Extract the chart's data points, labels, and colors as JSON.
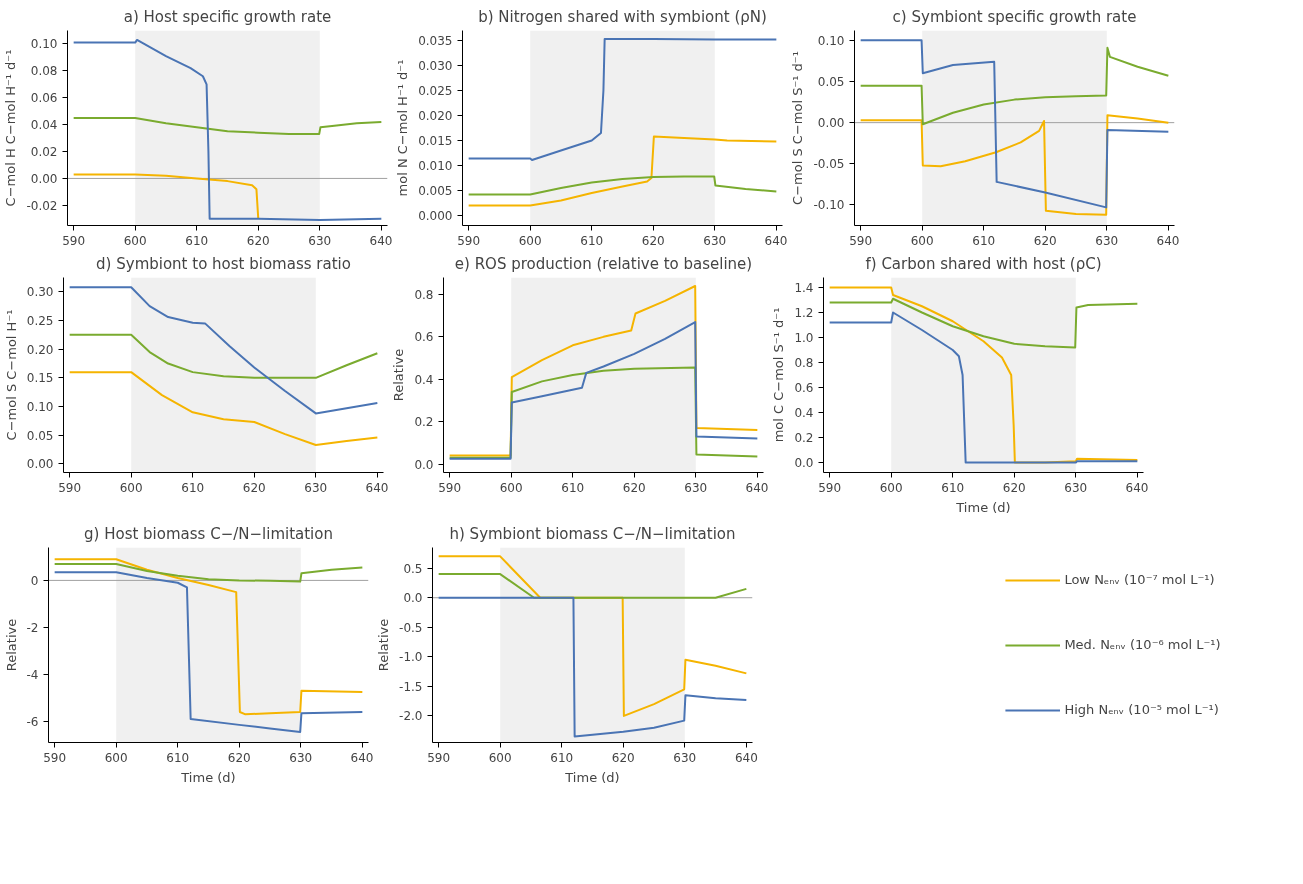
{
  "chart_data": [
    {
      "type": "line",
      "title": "a) Host specific growth rate",
      "ylabel": "C−mol H C−mol H⁻¹ d⁻¹",
      "xlim": [
        589,
        641
      ],
      "xticks": [
        590,
        600,
        610,
        620,
        630,
        640
      ],
      "ylim": [
        -0.035,
        0.11
      ],
      "yticks": [
        -0.02,
        {
          "value": 0,
          "label": "0.00"
        },
        0.02,
        0.04,
        0.06,
        0.08,
        {
          "value": 0.1,
          "label": "0.10"
        }
      ],
      "grid": false,
      "bands": [
        {
          "axis": "x",
          "from": 600,
          "to": 630,
          "color": "#f0f0f0"
        }
      ],
      "ref_lines": [
        {
          "axis": "y",
          "value": 0,
          "color": "#a0a0a0"
        }
      ],
      "series": [
        {
          "color": "#f5b400",
          "x": [
            590,
            600,
            605,
            610,
            615,
            619,
            619.7,
            620
          ],
          "values": [
            0.003,
            0.003,
            0.002,
            0.0,
            -0.002,
            -0.005,
            -0.008,
            -0.03
          ]
        },
        {
          "color": "#7aab2f",
          "x": [
            590,
            600,
            605,
            610,
            615,
            620,
            625,
            629.9,
            630.1,
            632,
            636,
            640
          ],
          "values": [
            0.045,
            0.045,
            0.041,
            0.038,
            0.035,
            0.034,
            0.033,
            0.033,
            0.038,
            0.039,
            0.041,
            0.042
          ]
        },
        {
          "color": "#4a74b4",
          "x": [
            590,
            600,
            600.3,
            605,
            609,
            611,
            611.6,
            611.9,
            612.1,
            620,
            630,
            640
          ],
          "values": [
            0.101,
            0.101,
            0.103,
            0.091,
            0.082,
            0.076,
            0.07,
            0.02,
            -0.03,
            -0.03,
            -0.031,
            -0.03
          ]
        }
      ]
    },
    {
      "type": "line",
      "title": "b) Nitrogen shared with symbiont (ρN)",
      "ylabel": "mol N C−mol H⁻¹ d⁻¹",
      "xlim": [
        589,
        641
      ],
      "xticks": [
        590,
        600,
        610,
        620,
        630,
        640
      ],
      "ylim": [
        -0.002,
        0.037
      ],
      "yticks": [
        {
          "value": 0,
          "label": "0.000"
        },
        0.005,
        {
          "value": 0.01,
          "label": "0.010"
        },
        0.015,
        {
          "value": 0.02,
          "label": "0.020"
        },
        0.025,
        {
          "value": 0.03,
          "label": "0.030"
        },
        0.035
      ],
      "grid": false,
      "bands": [
        {
          "axis": "x",
          "from": 600,
          "to": 630,
          "color": "#f0f0f0"
        }
      ],
      "series": [
        {
          "color": "#f5b400",
          "x": [
            590,
            600,
            605,
            610,
            615,
            619,
            619.7,
            620.1,
            625,
            630,
            632,
            640
          ],
          "values": [
            0.002,
            0.002,
            0.003,
            0.0045,
            0.0058,
            0.0068,
            0.0075,
            0.0158,
            0.0155,
            0.0152,
            0.015,
            0.0148
          ]
        },
        {
          "color": "#7aab2f",
          "x": [
            590,
            600,
            605,
            610,
            615,
            620,
            625,
            629.9,
            630.1,
            635,
            640
          ],
          "values": [
            0.0042,
            0.0042,
            0.0055,
            0.0066,
            0.0073,
            0.0077,
            0.0078,
            0.0078,
            0.006,
            0.0053,
            0.0048
          ]
        },
        {
          "color": "#4a74b4",
          "x": [
            590,
            600,
            600.3,
            605,
            610,
            611.5,
            611.9,
            612.1,
            620,
            630,
            640
          ],
          "values": [
            0.0114,
            0.0114,
            0.0111,
            0.013,
            0.015,
            0.0165,
            0.025,
            0.0353,
            0.0353,
            0.0352,
            0.0352
          ]
        }
      ]
    },
    {
      "type": "line",
      "title": "c) Symbiont specific growth rate",
      "ylabel": "C−mol S C−mol S⁻¹ d⁻¹",
      "xlim": [
        589,
        641
      ],
      "xticks": [
        590,
        600,
        610,
        620,
        630,
        640
      ],
      "ylim": [
        -0.125,
        0.112
      ],
      "yticks": [
        {
          "value": -0.1,
          "label": "-0.10"
        },
        -0.05,
        {
          "value": 0,
          "label": "0.00"
        },
        0.05,
        {
          "value": 0.1,
          "label": "0.10"
        }
      ],
      "grid": false,
      "bands": [
        {
          "axis": "x",
          "from": 600,
          "to": 630,
          "color": "#f0f0f0"
        }
      ],
      "ref_lines": [
        {
          "axis": "y",
          "value": 0,
          "color": "#a0a0a0"
        }
      ],
      "series": [
        {
          "color": "#f5b400",
          "x": [
            590,
            599.9,
            600.1,
            603,
            607,
            612,
            616,
            619,
            619.8,
            620.1,
            625,
            629.9,
            630.1,
            635,
            640
          ],
          "values": [
            0.003,
            0.003,
            -0.052,
            -0.053,
            -0.047,
            -0.036,
            -0.024,
            -0.01,
            0.002,
            -0.107,
            -0.111,
            -0.112,
            0.009,
            0.005,
            0.0
          ]
        },
        {
          "color": "#7aab2f",
          "x": [
            590,
            599.9,
            600.1,
            605,
            610,
            615,
            620,
            625,
            629.9,
            630.1,
            630.5,
            635,
            640
          ],
          "values": [
            0.045,
            0.045,
            -0.002,
            0.012,
            0.022,
            0.028,
            0.031,
            0.032,
            0.033,
            0.091,
            0.08,
            0.068,
            0.057
          ]
        },
        {
          "color": "#4a74b4",
          "x": [
            590,
            599.9,
            600.1,
            605,
            611.7,
            612.1,
            620,
            629.9,
            630.1,
            640
          ],
          "values": [
            0.1,
            0.1,
            0.06,
            0.07,
            0.074,
            -0.072,
            -0.085,
            -0.103,
            -0.009,
            -0.011
          ]
        }
      ]
    },
    {
      "type": "line",
      "title": "d) Symbiont to host biomass ratio",
      "ylabel": "C−mol S C−mol H⁻¹",
      "xlim": [
        589,
        641
      ],
      "xticks": [
        590,
        600,
        610,
        620,
        630,
        640
      ],
      "ylim": [
        -0.015,
        0.325
      ],
      "yticks": [
        {
          "value": 0,
          "label": "0.00"
        },
        0.05,
        {
          "value": 0.1,
          "label": "0.10"
        },
        0.15,
        {
          "value": 0.2,
          "label": "0.20"
        },
        0.25,
        {
          "value": 0.3,
          "label": "0.30"
        }
      ],
      "grid": false,
      "bands": [
        {
          "axis": "x",
          "from": 600,
          "to": 630,
          "color": "#f0f0f0"
        }
      ],
      "series": [
        {
          "color": "#f5b400",
          "x": [
            590,
            600,
            605,
            610,
            615,
            620,
            625,
            630,
            635,
            640
          ],
          "values": [
            0.16,
            0.16,
            0.12,
            0.09,
            0.078,
            0.073,
            0.052,
            0.033,
            0.04,
            0.046
          ]
        },
        {
          "color": "#7aab2f",
          "x": [
            590,
            600,
            603,
            606,
            610,
            615,
            620,
            625,
            630,
            635,
            640
          ],
          "values": [
            0.225,
            0.225,
            0.195,
            0.175,
            0.16,
            0.153,
            0.15,
            0.15,
            0.15,
            0.172,
            0.193
          ]
        },
        {
          "color": "#4a74b4",
          "x": [
            590,
            600,
            603,
            606,
            610,
            612,
            616,
            620,
            625,
            630,
            635,
            640
          ],
          "values": [
            0.308,
            0.308,
            0.275,
            0.256,
            0.246,
            0.245,
            0.205,
            0.168,
            0.127,
            0.088,
            0.097,
            0.106
          ]
        }
      ]
    },
    {
      "type": "line",
      "title": "e) ROS production (relative to baseline)",
      "ylabel": "Relative",
      "xlim": [
        589,
        641
      ],
      "xticks": [
        590,
        600,
        610,
        620,
        630,
        640
      ],
      "ylim": [
        -0.04,
        0.88
      ],
      "yticks": [
        {
          "value": 0,
          "label": "0.0"
        },
        0.2,
        0.4,
        0.6,
        0.8
      ],
      "grid": false,
      "bands": [
        {
          "axis": "x",
          "from": 600,
          "to": 630,
          "color": "#f0f0f0"
        }
      ],
      "series": [
        {
          "color": "#f5b400",
          "x": [
            590,
            599.9,
            600.1,
            605,
            610,
            615,
            619.5,
            620.2,
            625,
            629.9,
            630.1,
            640
          ],
          "values": [
            0.04,
            0.04,
            0.41,
            0.49,
            0.56,
            0.6,
            0.63,
            0.71,
            0.77,
            0.84,
            0.17,
            0.16
          ]
        },
        {
          "color": "#7aab2f",
          "x": [
            590,
            599.9,
            600.1,
            605,
            610,
            615,
            620,
            629.9,
            630.1,
            640
          ],
          "values": [
            0.03,
            0.03,
            0.34,
            0.39,
            0.42,
            0.44,
            0.45,
            0.455,
            0.045,
            0.035
          ]
        },
        {
          "color": "#4a74b4",
          "x": [
            590,
            599.9,
            600.1,
            605,
            611.5,
            612.2,
            615,
            620,
            625,
            629.9,
            630.1,
            640
          ],
          "values": [
            0.025,
            0.025,
            0.29,
            0.32,
            0.36,
            0.43,
            0.46,
            0.52,
            0.59,
            0.67,
            0.13,
            0.12
          ]
        }
      ]
    },
    {
      "type": "line",
      "title": "f) Carbon shared with host (ρC)",
      "xlabel": "Time (d)",
      "ylabel": "mol C C−mol S⁻¹ d⁻¹",
      "xlim": [
        589,
        641
      ],
      "xticks": [
        590,
        600,
        610,
        620,
        630,
        640
      ],
      "ylim": [
        -0.08,
        1.48
      ],
      "yticks": [
        {
          "value": 0,
          "label": "0.0"
        },
        0.2,
        0.4,
        0.6,
        0.8,
        {
          "value": 1,
          "label": "1.0"
        },
        1.2,
        1.4
      ],
      "grid": false,
      "bands": [
        {
          "axis": "x",
          "from": 600,
          "to": 630,
          "color": "#f0f0f0"
        }
      ],
      "series": [
        {
          "color": "#f5b400",
          "x": [
            590,
            600,
            600.3,
            605,
            610,
            615,
            618,
            619.5,
            619.9,
            620.1,
            625,
            630,
            630.2,
            640
          ],
          "values": [
            1.4,
            1.4,
            1.34,
            1.25,
            1.13,
            0.97,
            0.84,
            0.7,
            0.3,
            0.0,
            0.0,
            0.01,
            0.03,
            0.02
          ]
        },
        {
          "color": "#7aab2f",
          "x": [
            590,
            600,
            600.3,
            605,
            610,
            615,
            620,
            625,
            629.9,
            630.1,
            632,
            640
          ],
          "values": [
            1.28,
            1.28,
            1.31,
            1.2,
            1.09,
            1.01,
            0.95,
            0.93,
            0.92,
            1.24,
            1.26,
            1.27
          ]
        },
        {
          "color": "#4a74b4",
          "x": [
            590,
            600,
            600.3,
            605,
            610,
            611,
            611.6,
            612.1,
            620,
            630,
            630.2,
            640
          ],
          "values": [
            1.12,
            1.12,
            1.2,
            1.06,
            0.9,
            0.85,
            0.7,
            0.0,
            0.0,
            0.0,
            0.01,
            0.01
          ]
        }
      ]
    },
    {
      "type": "line",
      "title": "g) Host biomass C−/N−limitation",
      "xlabel": "Time (d)",
      "ylabel": "Relative",
      "xlim": [
        589,
        641
      ],
      "xticks": [
        590,
        600,
        610,
        620,
        630,
        640
      ],
      "ylim": [
        -6.9,
        1.4
      ],
      "yticks": [
        -6,
        -4,
        -2,
        0
      ],
      "grid": false,
      "bands": [
        {
          "axis": "x",
          "from": 600,
          "to": 630,
          "color": "#f0f0f0"
        }
      ],
      "ref_lines": [
        {
          "axis": "y",
          "value": 0,
          "color": "#a0a0a0"
        }
      ],
      "series": [
        {
          "color": "#f5b400",
          "x": [
            590,
            600,
            605,
            610,
            615,
            619.5,
            620.1,
            621,
            625,
            629.9,
            630.1,
            640
          ],
          "values": [
            0.9,
            0.9,
            0.45,
            0.1,
            -0.2,
            -0.5,
            -5.6,
            -5.7,
            -5.65,
            -5.6,
            -4.7,
            -4.75
          ]
        },
        {
          "color": "#7aab2f",
          "x": [
            590,
            600,
            605,
            610,
            615,
            620,
            625,
            629.9,
            630.1,
            635,
            640
          ],
          "values": [
            0.7,
            0.7,
            0.4,
            0.2,
            0.05,
            0.0,
            -0.02,
            -0.05,
            0.3,
            0.45,
            0.55
          ]
        },
        {
          "color": "#4a74b4",
          "x": [
            590,
            600,
            605,
            610,
            611.5,
            612.1,
            620,
            625,
            629.9,
            630.1,
            640
          ],
          "values": [
            0.35,
            0.35,
            0.1,
            -0.1,
            -0.3,
            -5.9,
            -6.15,
            -6.3,
            -6.45,
            -5.65,
            -5.6
          ]
        }
      ]
    },
    {
      "type": "line",
      "title": "h) Symbiont biomass C−/N−limitation",
      "xlabel": "Time (d)",
      "ylabel": "Relative",
      "xlim": [
        589,
        641
      ],
      "xticks": [
        590,
        600,
        610,
        620,
        630,
        640
      ],
      "ylim": [
        -2.45,
        0.85
      ],
      "yticks": [
        {
          "value": -2,
          "label": "-2.0"
        },
        -1.5,
        {
          "value": -1,
          "label": "-1.0"
        },
        -0.5,
        {
          "value": 0,
          "label": "0.0"
        },
        0.5
      ],
      "grid": false,
      "legend": "right",
      "bands": [
        {
          "axis": "x",
          "from": 600,
          "to": 630,
          "color": "#f0f0f0"
        }
      ],
      "ref_lines": [
        {
          "axis": "y",
          "value": 0,
          "color": "#a0a0a0"
        }
      ],
      "series": [
        {
          "name": "Low Nₑₙᵥ (10⁻⁷ mol L⁻¹)",
          "color": "#f5b400",
          "x": [
            590,
            600,
            606.5,
            619.9,
            620.1,
            625,
            629.9,
            630.1,
            635,
            640
          ],
          "values": [
            0.7,
            0.7,
            0.0,
            0.0,
            -2.0,
            -1.8,
            -1.55,
            -1.05,
            -1.15,
            -1.28
          ]
        },
        {
          "name": "Med. Nₑₙᵥ (10⁻⁶ mol L⁻¹)",
          "color": "#7aab2f",
          "x": [
            590,
            600,
            605.5,
            635,
            640
          ],
          "values": [
            0.4,
            0.4,
            0.0,
            0.0,
            0.15
          ]
        },
        {
          "name": "High Nₑₙᵥ (10⁻⁵ mol L⁻¹)",
          "color": "#4a74b4",
          "x": [
            590,
            611.9,
            612.1,
            620,
            625,
            629.9,
            630.1,
            635,
            640
          ],
          "values": [
            0.0,
            0.0,
            -2.35,
            -2.27,
            -2.2,
            -2.08,
            -1.65,
            -1.7,
            -1.73
          ]
        }
      ]
    }
  ]
}
